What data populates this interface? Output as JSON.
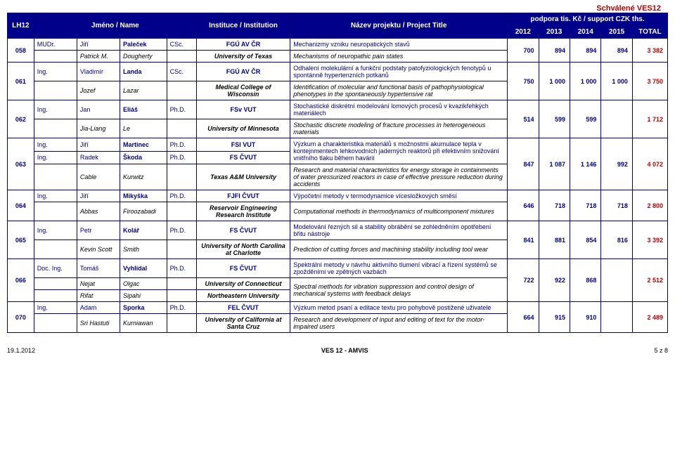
{
  "page": {
    "title": "Schválené VES12",
    "code": "LH12",
    "footer_left": "19.1.2012",
    "footer_center": "VES 12 - AMVIS",
    "footer_right": "5 z 8"
  },
  "headers": {
    "name": "Jméno / Name",
    "inst": "Instituce / Institution",
    "proj": "Název projektu / Project Title",
    "support": "podpora tis. Kč / support CZK ths.",
    "y12": "2012",
    "y13": "2013",
    "y14": "2014",
    "y15": "2015",
    "tot": "TOTAL"
  },
  "rows": [
    {
      "id": "058",
      "cz_t": "MUDr.",
      "cz_f": "Jiří",
      "cz_l": "Paleček",
      "cz_d": "CSc.",
      "cz_i": "FGÚ AV ČR",
      "cz_p": "Mechanizmy vzniku neuropatických stavů",
      "en_f": "Patrick M.",
      "en_l": "Dougherty",
      "en_i": "University of Texas",
      "en_p": "Mechanisms of neuropathic pain states",
      "v": [
        "700",
        "894",
        "894",
        "894",
        "3 382"
      ]
    },
    {
      "id": "061",
      "cz_t": "Ing.",
      "cz_f": "Vladimír",
      "cz_l": "Landa",
      "cz_d": "CSc.",
      "cz_i": "FGÚ AV ČR",
      "cz_p": "Odhalení molekulární a funkční podstaty patofyziologických fenotypů u spontánně hypertenzních potkanů",
      "en_f": "Jozef",
      "en_l": "Lazar",
      "en_i": "Medical College of Wisconsin",
      "en_p": "Identification of molecular and functional basis of pathophysiological phenotypes in the spontaneously hypertensive rat",
      "v": [
        "750",
        "1 000",
        "1 000",
        "1 000",
        "3 750"
      ]
    },
    {
      "id": "062",
      "cz_t": "Ing.",
      "cz_f": "Jan",
      "cz_l": "Eliáš",
      "cz_d": "Ph.D.",
      "cz_i": "FSv VUT",
      "cz_p": "Stochastické diskrétní modelování lomových procesů v kvazikřehkých materiálech",
      "en_f": "Jia-Liang",
      "en_l": "Le",
      "en_i": "University of Minnesota",
      "en_p": "Stochastic discrete modeling of fracture processes in heterogeneous materials",
      "v": [
        "514",
        "599",
        "599",
        "",
        "1 712"
      ]
    },
    {
      "id": "063",
      "cz_t": "Ing.",
      "cz_f": "Jiří",
      "cz_l": "Martinec",
      "cz_d": "Ph.D.",
      "cz_i": "FSI VUT",
      "cz_p": "Výzkum a charakteristika materiálů s možnostmi akumulace tepla v kontejnmentech lehkovodních jaderných reaktorů při efektivním snižování vnitřního tlaku během havárií",
      "cz2_t": "Ing.",
      "cz2_f": "Radek",
      "cz2_l": "Škoda",
      "cz2_d": "Ph.D.",
      "cz2_i": "FS ČVUT",
      "en_f": "Cable",
      "en_l": "Kurwitz",
      "en_i": "Texas A&M University",
      "en_p": "Research and material characteristics for energy storage in containments of water pressurized reactors in case of effective pressure reduction during accidents",
      "v": [
        "847",
        "1 087",
        "1 146",
        "992",
        "4 072"
      ]
    },
    {
      "id": "064",
      "cz_t": "Ing.",
      "cz_f": "Jiří",
      "cz_l": "Mikyška",
      "cz_d": "Ph.D.",
      "cz_i": "FJFI ČVUT",
      "cz_p": "Výpočetní metody v termodynamice vícesložkových směsí",
      "en_f": "Abbas",
      "en_l": "Firoozabadi",
      "en_i": "Reservoir Engineering Research Institute",
      "en_p": "Computational methods in thermodynamics of multicomponent mixtures",
      "v": [
        "646",
        "718",
        "718",
        "718",
        "2 800"
      ]
    },
    {
      "id": "065",
      "cz_t": "Ing.",
      "cz_f": "Petr",
      "cz_l": "Kolář",
      "cz_d": "Ph.D.",
      "cz_i": "FS ČVUT",
      "cz_p": "Modelování řezných sil a stability obrábění se zohledněním opotřebení břitu nástroje",
      "en_f": "Kevin Scott",
      "en_l": "Smith",
      "en_i": "University of North Carolina at Charlotte",
      "en_p": "Prediction of cutting forces and machining stability including tool wear",
      "v": [
        "841",
        "881",
        "854",
        "816",
        "3 392"
      ]
    },
    {
      "id": "066",
      "cz_t": "Doc.   Ing.",
      "cz_f": "Tomáš",
      "cz_l": "Vyhlídal",
      "cz_d": "Ph.D.",
      "cz_i": "FS ČVUT",
      "cz_p": "Spektrální metody v návrhu aktivního tlumení vibrací a řízení systémů se zpožděními ve zpětných vazbách",
      "en_f": "Nejat",
      "en_l": "Olgac",
      "en_i": "University of Connecticut",
      "en_p": "Spectral methods for vibration suppression and control design of mechanical systems with feedback delays",
      "en2_f": "Rifat",
      "en2_l": "Sipahi",
      "en2_i": "Northeastern University",
      "v": [
        "722",
        "922",
        "868",
        "",
        "2 512"
      ]
    },
    {
      "id": "070",
      "cz_t": "Ing.",
      "cz_f": "Adam",
      "cz_l": "Sporka",
      "cz_d": "Ph.D.",
      "cz_i": "FEL ČVUT",
      "cz_p": "Výzkum metod psaní a editace textu pro pohybově postižené uživatele",
      "en_f": "Sri Hastuti",
      "en_l": "Kurniawan",
      "en_i": "University of California at Santa Cruz",
      "en_p": "Research and development of input and editing of text for the motor-impaired users",
      "v": [
        "664",
        "915",
        "910",
        "",
        "2 489"
      ]
    }
  ]
}
